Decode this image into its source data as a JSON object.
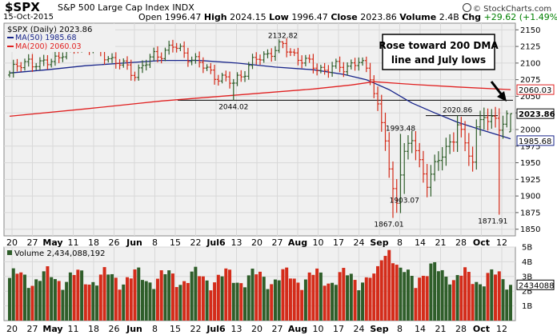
{
  "header": {
    "symbol": "$SPX",
    "company": "S&P 500 Large Cap Index",
    "exchange": "INDX",
    "date": "15-Oct-2015",
    "open_label": "Open",
    "open": "1996.47",
    "high_label": "High",
    "high": "2024.15",
    "low_label": "Low",
    "low": "1996.47",
    "close_label": "Close",
    "close": "2023.86",
    "volume_label": "Volume",
    "volume": "2.4B",
    "chg_label": "Chg",
    "chg": "+29.62 (+1.49%)",
    "chg_arrow": "▲",
    "brand": "© StockCharts.com"
  },
  "legend": {
    "main": "$SPX (Daily) 2023.86",
    "ma50": "MA(50) 1985.68",
    "ma200": "MA(200) 2060.03",
    "volume": "Volume 2,434,088,192"
  },
  "annotation": {
    "line1": "Rose toward 200 DMA",
    "line2": "line and July lows"
  },
  "colors": {
    "up": "#2f5e2a",
    "down": "#d42c1a",
    "ma50": "#17248a",
    "ma200": "#e02020",
    "grid": "#d8d8d8",
    "panel_bg": "#f0f0f0"
  },
  "chart_data": [
    {
      "type": "ohlc",
      "y_scale": "linear",
      "ylim": [
        1840,
        2160
      ],
      "yticks": [
        1850,
        1875,
        1900,
        1925,
        1950,
        1975,
        2000,
        2025,
        2050,
        2075,
        2100,
        2125,
        2150
      ],
      "x_tick_labels": [
        "20",
        "27",
        "May",
        "11",
        "18",
        "26",
        "Jun",
        "8",
        "15",
        "22",
        "Jul6",
        "13",
        "20",
        "27",
        "Aug",
        "10",
        "17",
        "24",
        "Sep",
        "8",
        "14",
        "21",
        "28",
        "Oct",
        "12"
      ],
      "x_tick_bold": [
        "May",
        "Jun",
        "Jul6",
        "Aug",
        "Sep",
        "Oct"
      ],
      "price_labels": [
        "2132.82",
        "2044.02",
        "1993.48",
        "1903.07",
        "1867.01",
        "2020.86",
        "1871.91"
      ],
      "right_badges": [
        {
          "label": "MA(200)",
          "value": "2060.03"
        },
        {
          "label": "Close",
          "value": "2023.86"
        },
        {
          "label": "MA(50)",
          "value": "1985.68"
        }
      ],
      "reference_lines": [
        2044.02,
        2020.86
      ],
      "series": [
        {
          "name": "MA(50)",
          "points": [
            [
              0,
              2085
            ],
            [
              10,
              2090
            ],
            [
              20,
              2096
            ],
            [
              30,
              2100
            ],
            [
              40,
              2104
            ],
            [
              50,
              2104
            ],
            [
              60,
              2100
            ],
            [
              70,
              2094
            ],
            [
              80,
              2090
            ],
            [
              88,
              2083
            ],
            [
              94,
              2075
            ],
            [
              100,
              2060
            ],
            [
              106,
              2040
            ],
            [
              112,
              2025
            ],
            [
              118,
              2011
            ],
            [
              124,
              2000
            ],
            [
              128,
              1993
            ],
            [
              132,
              1986
            ]
          ]
        },
        {
          "name": "MA(200)",
          "points": [
            [
              0,
              2020
            ],
            [
              20,
              2031
            ],
            [
              40,
              2043
            ],
            [
              60,
              2052
            ],
            [
              80,
              2061
            ],
            [
              90,
              2067
            ],
            [
              96,
              2072
            ],
            [
              106,
              2068
            ],
            [
              118,
              2064
            ],
            [
              132,
              2060
            ]
          ]
        }
      ]
    },
    {
      "type": "bar",
      "name": "Volume",
      "ylim": [
        0,
        5
      ],
      "yticks": [
        "1B",
        "2B",
        "3B",
        "4B",
        "5B"
      ],
      "last_value": "2434088",
      "last_value_billions": 2.43
    }
  ]
}
